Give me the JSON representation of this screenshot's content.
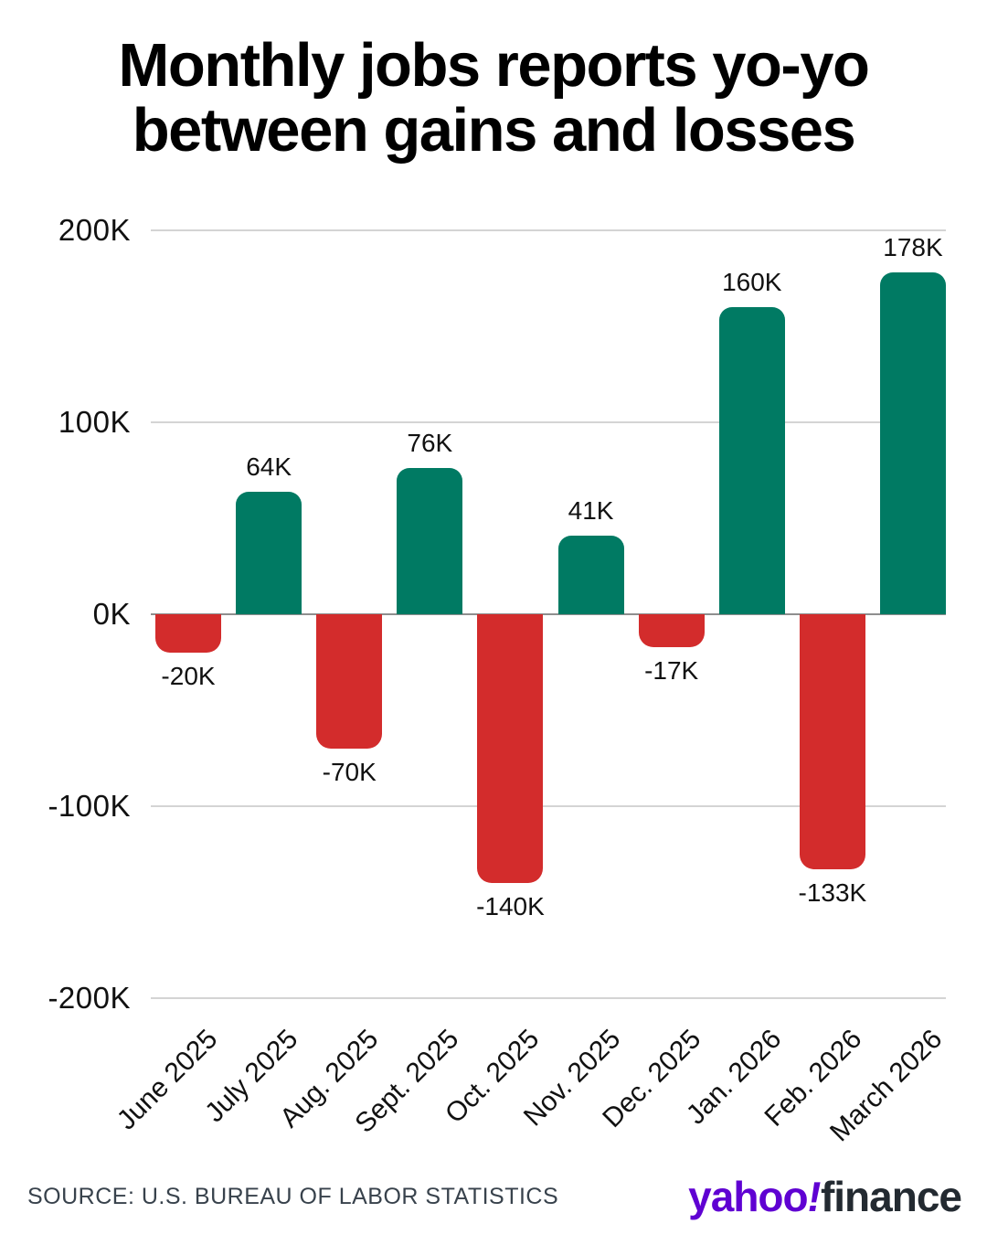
{
  "title": {
    "line1": "Monthly jobs reports yo-yo",
    "line2": "between gains and losses"
  },
  "chart_data": {
    "type": "bar",
    "title": "Monthly jobs reports yo-yo between gains and losses",
    "categories": [
      "June 2025",
      "July 2025",
      "Aug. 2025",
      "Sept. 2025",
      "Oct. 2025",
      "Nov. 2025",
      "Dec. 2025",
      "Jan. 2026",
      "Feb. 2026",
      "March 2026"
    ],
    "values": [
      -20,
      64,
      -70,
      76,
      -140,
      41,
      -17,
      160,
      -133,
      178
    ],
    "value_labels": [
      "-20K",
      "64K",
      "-70K",
      "76K",
      "-140K",
      "41K",
      "-17K",
      "160K",
      "-133K",
      "178K"
    ],
    "y_ticks": [
      {
        "label": "200K",
        "value": 200
      },
      {
        "label": "100K",
        "value": 100
      },
      {
        "label": "0K",
        "value": 0
      },
      {
        "label": "-100K",
        "value": -100
      },
      {
        "label": "-200K",
        "value": -200
      }
    ],
    "ylim": [
      -200,
      200
    ],
    "unit": "thousands of jobs",
    "grid": true,
    "legend": "none",
    "colors": {
      "positive": "#007A63",
      "negative": "#D32C2C"
    }
  },
  "footer": {
    "source": "SOURCE: U.S. BUREAU OF LABOR STATISTICS",
    "logo": {
      "yahoo": "yahoo",
      "bang": "!",
      "finance": "finance"
    }
  }
}
